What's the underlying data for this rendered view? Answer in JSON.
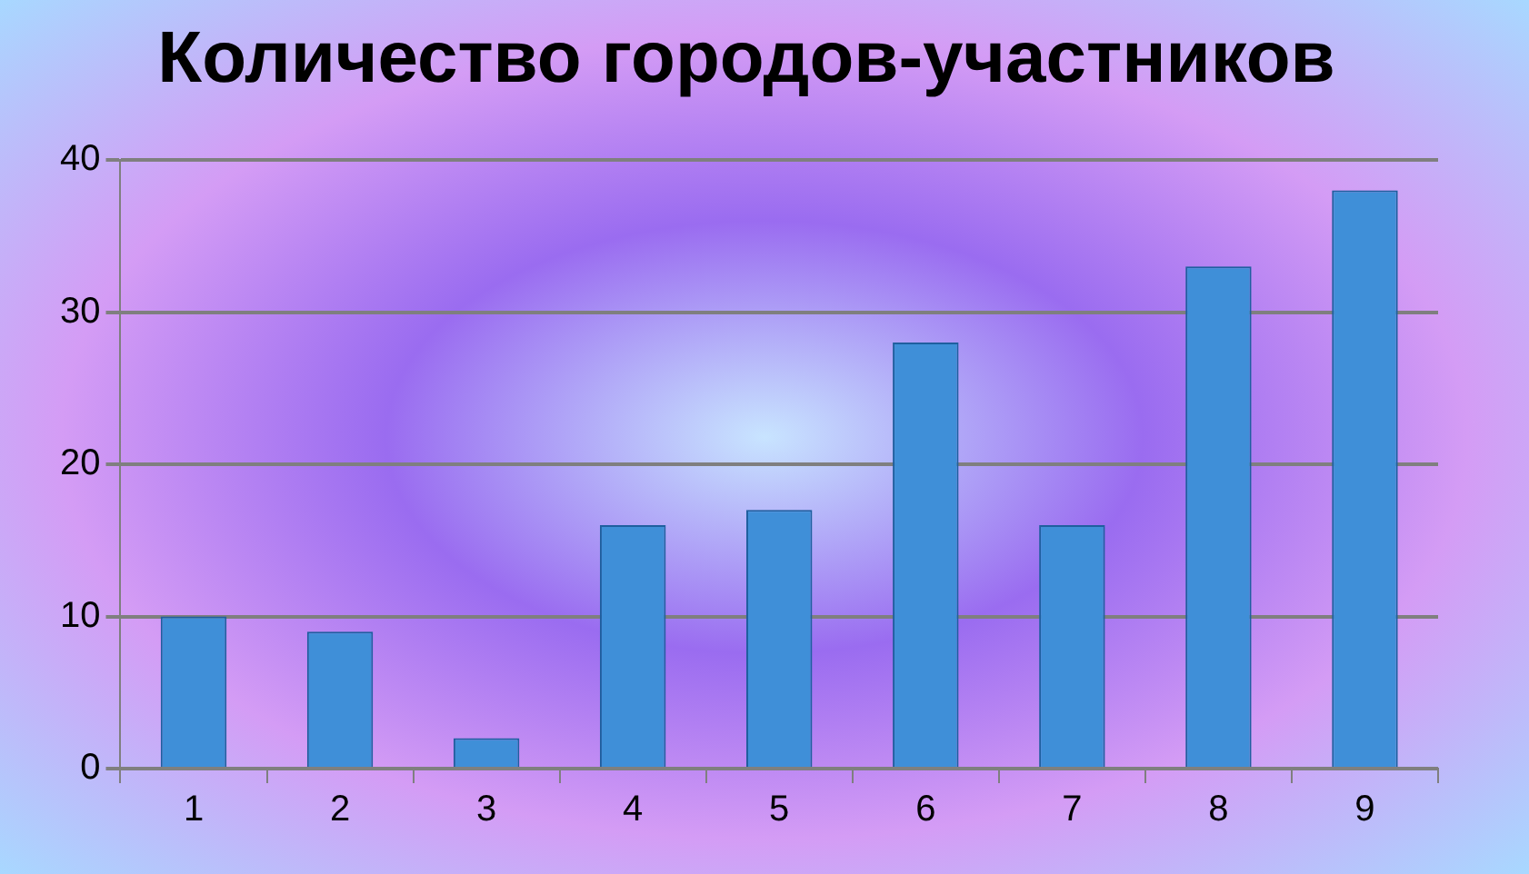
{
  "chart_data": {
    "type": "bar",
    "title": "Количество городов-участников",
    "categories": [
      "1",
      "2",
      "3",
      "4",
      "5",
      "6",
      "7",
      "8",
      "9"
    ],
    "values": [
      10,
      9,
      2,
      16,
      17,
      28,
      16,
      33,
      38
    ],
    "color": "#3f8fd8",
    "ylim": [
      0,
      40
    ],
    "yticks": [
      0,
      10,
      20,
      30,
      40
    ],
    "grid": "y"
  }
}
